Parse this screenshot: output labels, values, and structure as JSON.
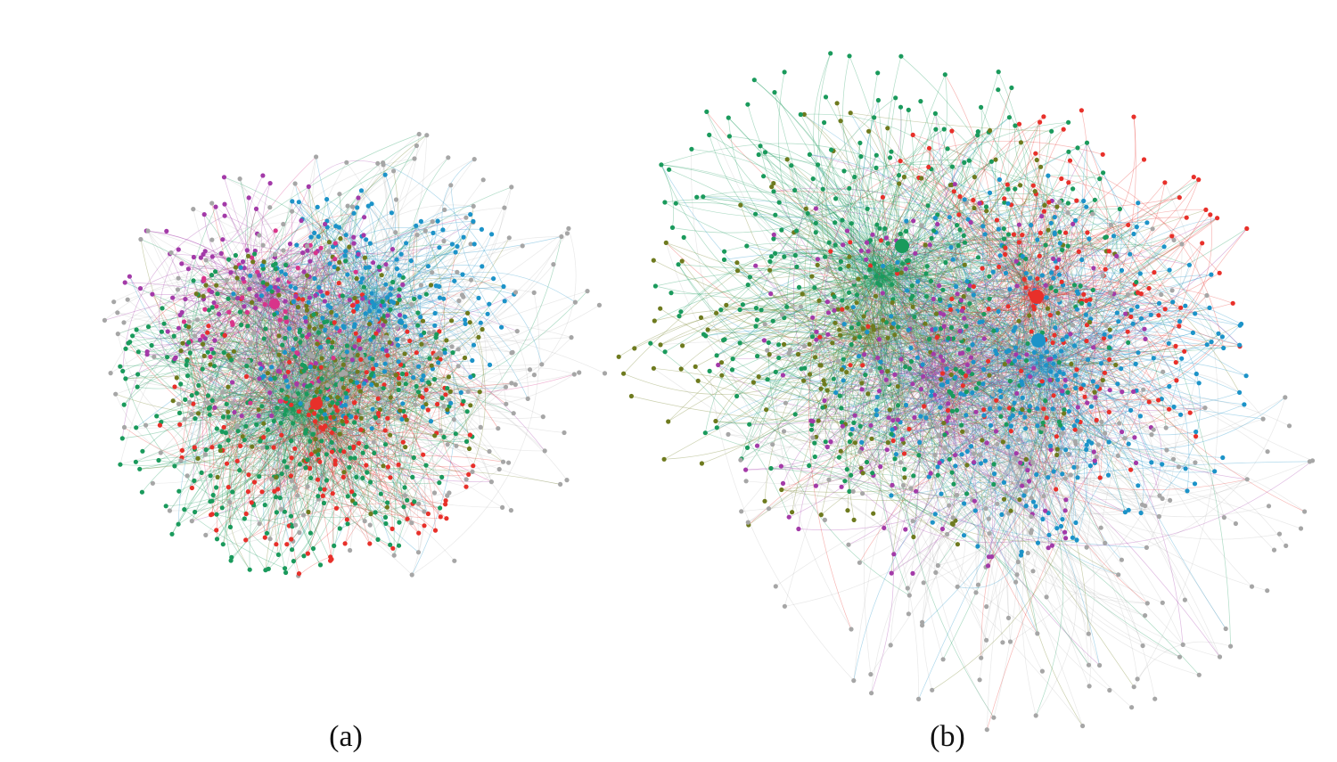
{
  "figure": {
    "panels": [
      {
        "id": "a",
        "caption": "(a)"
      },
      {
        "id": "b",
        "caption": "(b)"
      }
    ],
    "community_colors": {
      "gray": "#a6a6a6",
      "green": "#1a9a5c",
      "red": "#e8302a",
      "blue": "#1c93c8",
      "magenta": "#a33aa8",
      "olive": "#6e7a1e",
      "pink": "#d8348a"
    }
  }
}
